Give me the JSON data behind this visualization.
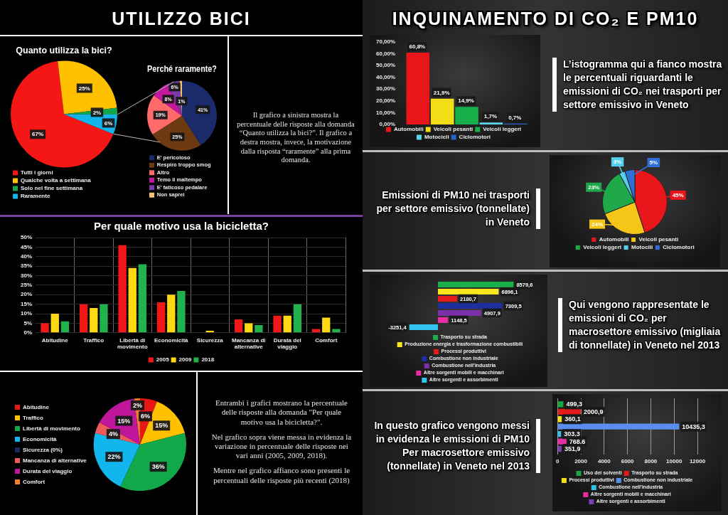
{
  "chart_data": [
    {
      "type": "other",
      "title": "UTILIZZO BICI"
    },
    {
      "type": "pie",
      "title": "Quanto utilizza la bici?",
      "categories": [
        "Tutti i giorni",
        "Qualche volta a settimana",
        "Solo nel fine settimana",
        "Raramente"
      ],
      "values": [
        67,
        25,
        2,
        6
      ],
      "colors": [
        "#f51616",
        "#ffc000",
        "#12a84a",
        "#12b5ec"
      ],
      "value_labels": [
        "67%",
        "25%",
        "2%",
        "6%"
      ],
      "legend": "bottom"
    },
    {
      "type": "pie",
      "title": "Perché raramente?",
      "categories": [
        "E' pericoloso",
        "Respiro troppo smog",
        "Altro",
        "Temo il maltempo",
        "E' faticoso pedalare",
        "Non saprei"
      ],
      "values": [
        41,
        25,
        19,
        8,
        6,
        1
      ],
      "colors": [
        "#1b2a6b",
        "#6e3a12",
        "#ff6b6b",
        "#c2189e",
        "#7a3aa8",
        "#f2c46b"
      ],
      "value_labels": [
        "41%",
        "25%",
        "19%",
        "8%",
        "6%",
        "1%"
      ],
      "legend": "bottom"
    },
    {
      "type": "other",
      "annotations": [
        "Il grafico a sinistra mostra la percentuale delle risposte alla domanda “Quanto utilizza la bici?”. Il grafico a destra mostra, invece, la motivazione dalla risposta “raramente” alla prima domanda."
      ]
    },
    {
      "type": "bar",
      "title": "Per quale motivo usa la bicicletta?",
      "categories": [
        "Abitudine",
        "Traffico",
        "Libertà di movimento",
        "Economicità",
        "Sicurezza",
        "Mancanza di alternative",
        "Durata del viaggio",
        "Comfort"
      ],
      "series": [
        {
          "name": "2005",
          "color": "#f21818",
          "values": [
            5,
            15,
            46,
            16,
            0,
            7,
            9,
            2
          ]
        },
        {
          "name": "2009",
          "color": "#ffd814",
          "values": [
            10,
            13,
            34,
            20,
            1,
            5,
            9,
            8
          ]
        },
        {
          "name": "2018",
          "color": "#22b14c",
          "values": [
            6,
            15,
            36,
            22,
            0,
            4,
            15,
            2
          ]
        }
      ],
      "ylim": [
        0,
        50
      ],
      "yticks": [
        {
          "value": 0,
          "label": "0%"
        },
        {
          "value": 5,
          "label": "5%"
        },
        {
          "value": 10,
          "label": "10%"
        },
        {
          "value": 15,
          "label": "15%"
        },
        {
          "value": 20,
          "label": "20%"
        },
        {
          "value": 25,
          "label": "25%"
        },
        {
          "value": 30,
          "label": "30%"
        },
        {
          "value": 35,
          "label": "35%"
        },
        {
          "value": 40,
          "label": "40%"
        },
        {
          "value": 45,
          "label": "45%"
        },
        {
          "value": 50,
          "label": "50%"
        }
      ],
      "grid": true,
      "legend": "bottom"
    },
    {
      "type": "pie",
      "categories": [
        "Abitudine",
        "Traffico",
        "Libertà di movimento",
        "Economicità",
        "Sicurezza (0%)",
        "Mancanza di alternative",
        "Durata del viaggio",
        "Comfort"
      ],
      "values": [
        6,
        15,
        36,
        22,
        0,
        4,
        15,
        2
      ],
      "colors": [
        "#e81717",
        "#ffc000",
        "#12a84a",
        "#12b5ec",
        "#1f2a5c",
        "#f05a5a",
        "#c0169c",
        "#f08030"
      ],
      "value_labels": [
        "6%",
        "15%",
        "36%",
        "22%",
        null,
        "4%",
        "15%",
        "2%"
      ],
      "legend": "left"
    },
    {
      "type": "other",
      "annotations": [
        "Entrambi i grafici mostrano la percentuale delle risposte alla domanda \"Per quale motivo usa la bicicletta?\".",
        "Nel grafico sopra viene messa in evidenza la variazione in percentuale delle risposte nei vari anni (2005, 2009, 2018).",
        "Mentre nel grafico affianco sono presenti le percentuali delle risposte più recenti (2018)"
      ]
    },
    {
      "type": "other",
      "title": "INQUINAMENTO DI CO₂ E PM10"
    },
    {
      "type": "bar",
      "categories": [
        null
      ],
      "series": [
        {
          "name": "Automobili",
          "color": "#e8161b",
          "values": [
            60.8
          ],
          "value_labels": [
            "60,8%"
          ]
        },
        {
          "name": "Veicoli pesanti",
          "color": "#f2dd17",
          "values": [
            21.9
          ],
          "value_labels": [
            "21,9%"
          ]
        },
        {
          "name": "Veicoli leggeri",
          "color": "#17b04b",
          "values": [
            14.9
          ],
          "value_labels": [
            "14,9%"
          ]
        },
        {
          "name": "Motocicli",
          "color": "#5ad7ea",
          "values": [
            1.7
          ],
          "value_labels": [
            "1,7%"
          ]
        },
        {
          "name": "Ciclomotori",
          "color": "#2a63c9",
          "values": [
            0.7
          ],
          "value_labels": [
            "0,7%"
          ]
        }
      ],
      "ylim": [
        0,
        70
      ],
      "yticks": [
        {
          "value": 0,
          "label": "0,00%"
        },
        {
          "value": 10,
          "label": "10,00%"
        },
        {
          "value": 20,
          "label": "20,00%"
        },
        {
          "value": 30,
          "label": "30,00%"
        },
        {
          "value": 40,
          "label": "40,00%"
        },
        {
          "value": 50,
          "label": "50,00%"
        },
        {
          "value": 60,
          "label": "60,00%"
        },
        {
          "value": 70,
          "label": "70,00%"
        }
      ],
      "legend": "bottom",
      "annotations": [
        "L’istogramma qui a fianco mostra le percentuali riguardanti le emissioni di CO₂ nei trasporti per settore emissivo in Veneto"
      ]
    },
    {
      "type": "pie",
      "title": "Emissioni di PM10 nei trasporti per settore emissivo (tonnellate) in Veneto",
      "categories": [
        "Automobili",
        "Veicoli pesanti",
        "Veicoli leggeri",
        "Motocili",
        "Ciclomotori"
      ],
      "values": [
        45,
        24,
        23,
        3,
        5
      ],
      "colors": [
        "#e8161b",
        "#f5c518",
        "#1fa84a",
        "#55d0ec",
        "#2f6fd6"
      ],
      "value_labels": [
        "45%",
        "24%",
        "23%",
        "3%",
        "5%"
      ],
      "legend": "bottom"
    },
    {
      "type": "bar",
      "orientation": "horizontal",
      "categories": [
        null
      ],
      "series": [
        {
          "name": "Trasporto su strada",
          "color": "#19b04b",
          "values": [
            8579.6
          ],
          "value_labels": [
            "8579,6"
          ]
        },
        {
          "name": "Produzione energia e trasformazione combustibili",
          "color": "#f8e71c",
          "values": [
            6896.1
          ],
          "value_labels": [
            "6896,1"
          ]
        },
        {
          "name": "Processi produttivi",
          "color": "#e51b1b",
          "values": [
            2180.7
          ],
          "value_labels": [
            "2180,7"
          ]
        },
        {
          "name": "Combustione non industriale",
          "color": "#1c2f9c",
          "values": [
            7309.5
          ],
          "value_labels": [
            "7309,5"
          ]
        },
        {
          "name": "Combustione nell'industria",
          "color": "#7b2fa8",
          "values": [
            4907.9
          ],
          "value_labels": [
            "4907,9"
          ]
        },
        {
          "name": "Altre sorgenti mobili e macchinari",
          "color": "#ec2ea5",
          "values": [
            1148.5
          ],
          "value_labels": [
            "1148,5"
          ]
        },
        {
          "name": "Altre sorgenti e assorbimenti",
          "color": "#33c3f0",
          "values": [
            -3251.4
          ],
          "value_labels": [
            "-3251,4"
          ]
        }
      ],
      "legend": "bottom",
      "annotations": [
        "Qui vengono rappresentate le emissioni di CO₂ per macrosettore emissivo (migliaia di tonnellate) in Veneto nel 2013"
      ]
    },
    {
      "type": "bar",
      "orientation": "horizontal",
      "categories": [
        null
      ],
      "series": [
        {
          "name": "Uso dei solventi",
          "color": "#17a93e",
          "values": [
            499.3
          ],
          "value_labels": [
            "499,3"
          ]
        },
        {
          "name": "Trasporto su strada",
          "color": "#e51b1b",
          "values": [
            2000.9
          ],
          "value_labels": [
            "2000,9"
          ]
        },
        {
          "name": "Processi produttivi",
          "color": "#f5e11a",
          "values": [
            360.1
          ],
          "value_labels": [
            "360,1"
          ]
        },
        {
          "name": "Combustione non industriale",
          "color": "#5b8def",
          "values": [
            10435.3
          ],
          "value_labels": [
            "10435,3"
          ]
        },
        {
          "name": "Combustione nell'industria",
          "color": "#31c2ea",
          "values": [
            303.3
          ],
          "value_labels": [
            "303,3"
          ]
        },
        {
          "name": "Altre sorgenti mobili e macchinari",
          "color": "#e62ea0",
          "values": [
            768.6
          ],
          "value_labels": [
            "768,6"
          ]
        },
        {
          "name": "Altre sorgenti e assorbimenti",
          "color": "#7b3fb0",
          "values": [
            351.9
          ],
          "value_labels": [
            "351,9"
          ]
        }
      ],
      "xlim": [
        0,
        12000
      ],
      "xticks": [
        0,
        2000,
        4000,
        6000,
        8000,
        10000,
        12000
      ],
      "grid": "x",
      "legend": "bottom",
      "annotations": [
        "In questo grafico vengono messi in evidenza le emissioni di PM10 Per macrosettore emissivo (tonnellate) in Veneto nel 2013"
      ]
    }
  ]
}
